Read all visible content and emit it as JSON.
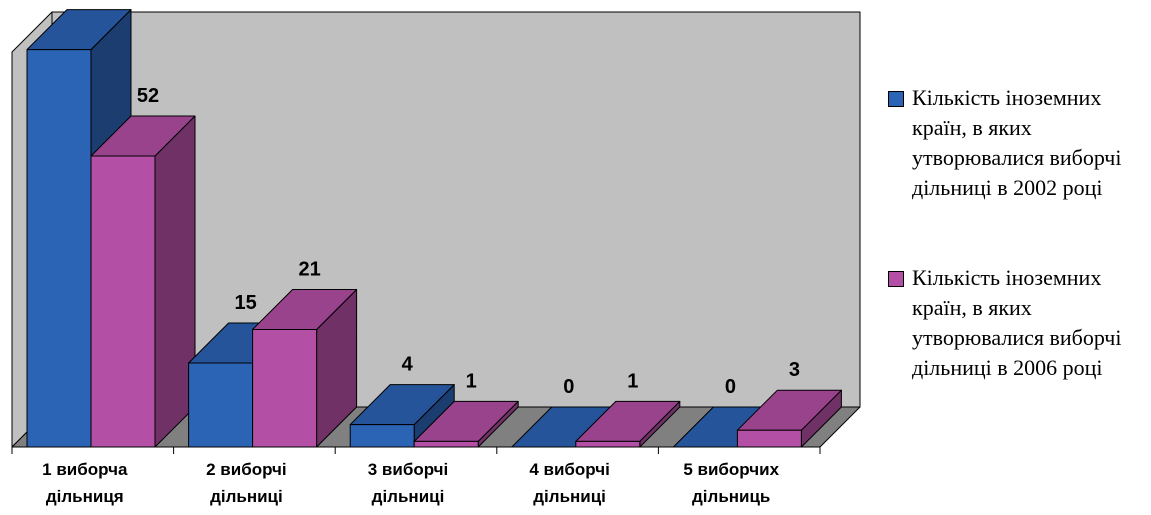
{
  "chart_data": {
    "type": "bar",
    "categories": [
      [
        "1 виборча",
        "дільниця"
      ],
      [
        "2 виборчі",
        "дільниці"
      ],
      [
        "3 виборчі",
        "дільниці"
      ],
      [
        "4 виборчі",
        "дільниці"
      ],
      [
        "5 виборчих",
        "дільниць"
      ]
    ],
    "series": [
      {
        "name": "Кількість іноземних країн, в яких утворювалися виборчі дільниці в 2002 році",
        "values": [
          71,
          15,
          4,
          0,
          0
        ],
        "color": "#2B63B5"
      },
      {
        "name": "Кількість іноземних країн, в яких утворювалися виборчі дільниці в 2006 році",
        "values": [
          52,
          21,
          1,
          1,
          3
        ],
        "color": "#B34FA5"
      }
    ],
    "ylim": [
      0,
      75
    ],
    "legend": "right",
    "style": "3d-clustered-bar",
    "wall_color": "#C0C0C0",
    "floor_color": "#808080"
  }
}
